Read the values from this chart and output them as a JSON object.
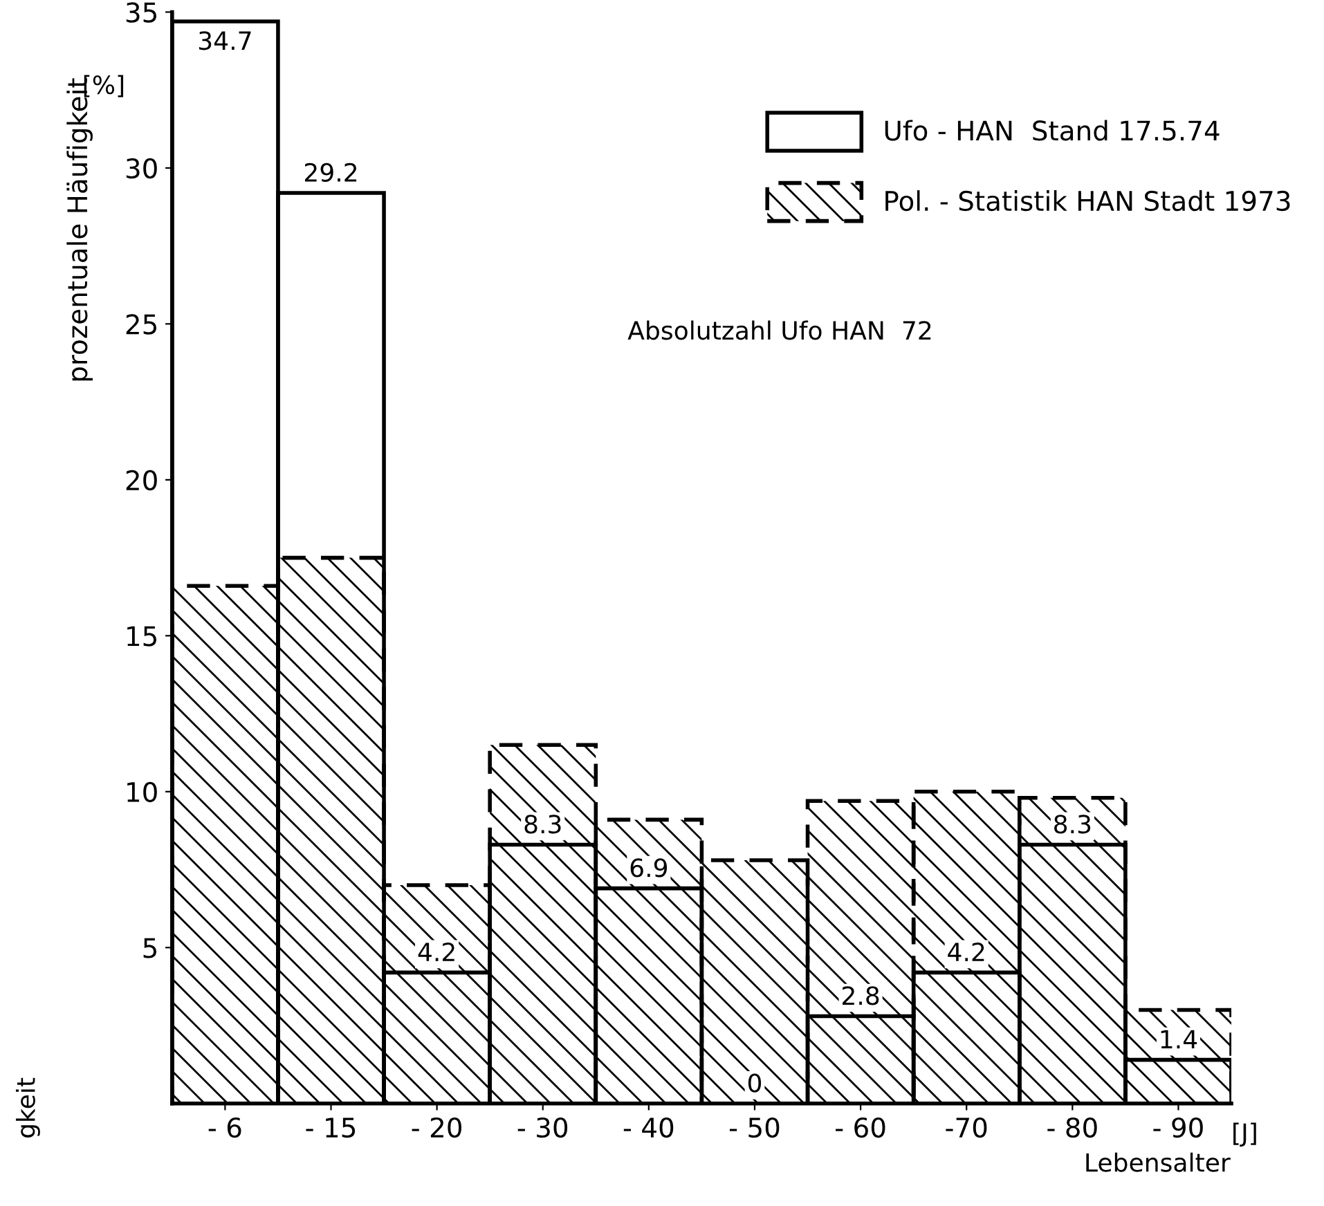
{
  "chart_data": {
    "type": "bar",
    "ylabel": "prozentuale Häufigkeit",
    "xlabel": "Lebensalter",
    "categories": [
      "- 6",
      "- 15",
      "- 20",
      "- 30",
      "- 40",
      "- 50",
      "- 60",
      "-70",
      "- 80",
      "- 90"
    ],
    "series": [
      {
        "name": "Pol. - Statistik HAN Stadt 1973",
        "color": "#000000",
        "line_style": "dashed",
        "values": [
          16.6,
          17.5,
          7.0,
          11.5,
          9.1,
          7.8,
          9.7,
          10.0,
          9.8,
          3.0
        ]
      },
      {
        "name": "Ufo - HAN  Stand 17.5.74",
        "color": "#000000",
        "line_style": "solid",
        "values": [
          34.7,
          29.2,
          4.2,
          8.3,
          6.9,
          0,
          2.8,
          4.2,
          8.3,
          1.4
        ],
        "value_labels": [
          "34.7",
          "29.2",
          "4.2",
          "8.3",
          "6.9",
          "0",
          "2.8",
          "4.2",
          "8.3",
          "1.4"
        ]
      }
    ],
    "ylim": [
      0,
      35
    ],
    "yticks": [
      5,
      10,
      15,
      20,
      25,
      30,
      35
    ],
    "legend": "top right",
    "grid": false,
    "annotations": [
      "[%]",
      "[J]",
      "Absolutzahl Ufo HAN  72",
      "gkeit"
    ]
  }
}
